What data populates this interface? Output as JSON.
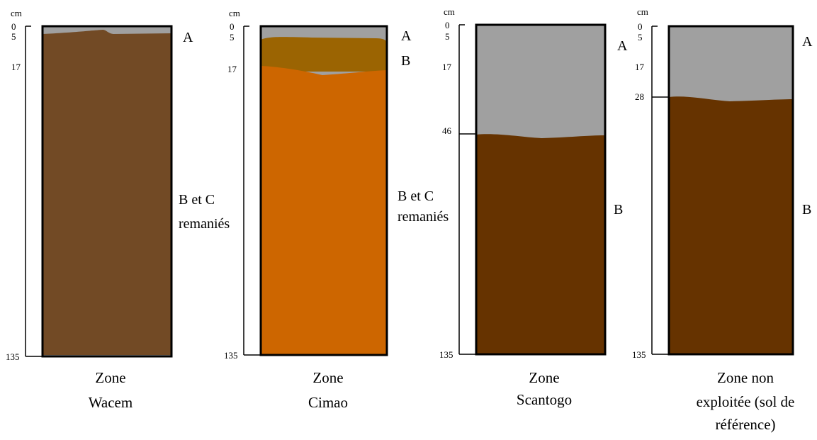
{
  "unit": "cm",
  "colors": {
    "grey": "#a0a0a0",
    "wacem_brown": "#724a25",
    "cimao_b": "#9b6402",
    "cimao_orange": "#cd6600",
    "dark_brown": "#663300",
    "frame": "#000000"
  },
  "profiles": [
    {
      "id": "wacem",
      "caption_lines": [
        "Zone",
        "Wacem"
      ],
      "ticks": [
        "0",
        "5",
        "17",
        "135"
      ],
      "horizon_labels": [
        {
          "lines": [
            "A"
          ]
        },
        {
          "lines": [
            "B et C",
            "remaniés"
          ]
        }
      ]
    },
    {
      "id": "cimao",
      "caption_lines": [
        "Zone",
        "Cimao"
      ],
      "ticks": [
        "0",
        "5",
        "17",
        "135"
      ],
      "horizon_labels": [
        {
          "lines": [
            "A"
          ]
        },
        {
          "lines": [
            "B"
          ]
        },
        {
          "lines": [
            "B et C",
            "remaniés"
          ]
        }
      ]
    },
    {
      "id": "scantogo",
      "caption_lines": [
        "Zone",
        "Scantogo"
      ],
      "ticks": [
        "0",
        "5",
        "17",
        "46",
        "135"
      ],
      "horizon_labels": [
        {
          "lines": [
            "A"
          ]
        },
        {
          "lines": [
            "B"
          ]
        }
      ]
    },
    {
      "id": "reference",
      "caption_lines": [
        "Zone non",
        "exploitée (sol de",
        "référence)"
      ],
      "ticks": [
        "0",
        "5",
        "17",
        "28",
        "135"
      ],
      "horizon_labels": [
        {
          "lines": [
            "A"
          ]
        },
        {
          "lines": [
            "B"
          ]
        }
      ]
    }
  ]
}
